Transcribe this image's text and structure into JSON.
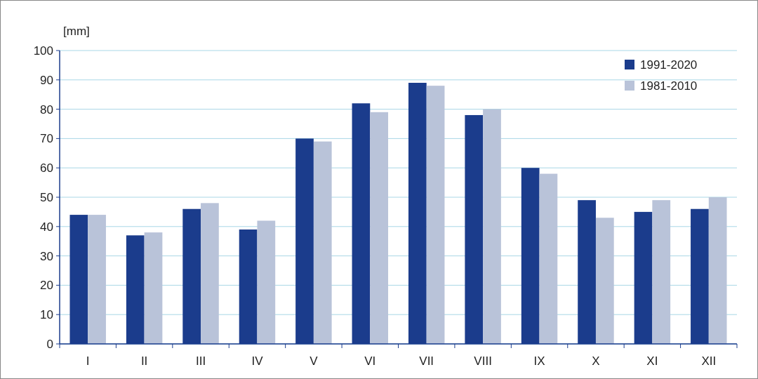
{
  "chart_data": {
    "type": "bar",
    "ylabel": "[mm]",
    "categories": [
      "I",
      "II",
      "III",
      "IV",
      "V",
      "VI",
      "VII",
      "VIII",
      "IX",
      "X",
      "XI",
      "XII"
    ],
    "series": [
      {
        "name": "1991-2020",
        "color": "#1b3c8c",
        "values": [
          44,
          37,
          46,
          39,
          70,
          82,
          89,
          78,
          60,
          49,
          45,
          46
        ]
      },
      {
        "name": "1981-2010",
        "color": "#b9c3d9",
        "values": [
          44,
          38,
          48,
          42,
          69,
          79,
          88,
          80,
          58,
          43,
          49,
          50
        ]
      }
    ],
    "ylim": [
      0,
      100
    ],
    "yticks": [
      0,
      10,
      20,
      30,
      40,
      50,
      60,
      70,
      80,
      90,
      100
    ],
    "grid": "y",
    "legend": "top right"
  }
}
